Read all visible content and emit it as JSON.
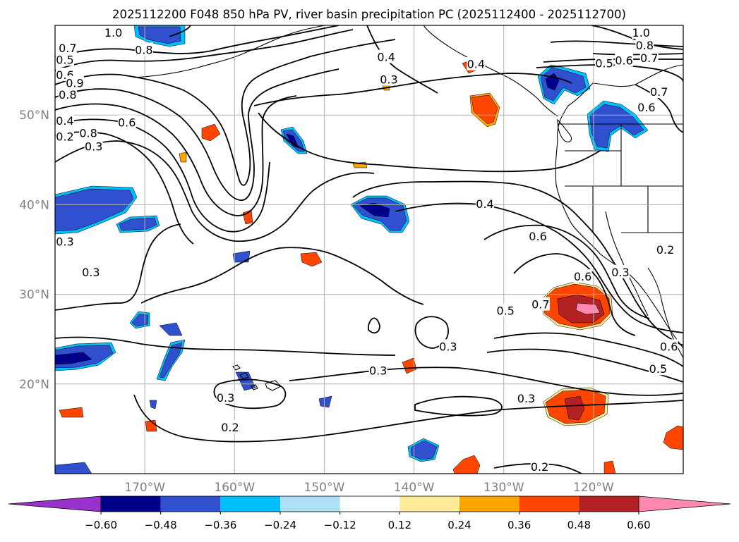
{
  "title": "2025112200 F048 850 hPa PV, river basin precipitation PC (2025112400 - 2025112700)",
  "colors": {
    "contour": "#000000",
    "grid": "#b0b0b0",
    "tick_label": "#808080",
    "bins": [
      "#9932cc",
      "#00008b",
      "#3050d0",
      "#00bfff",
      "#b0e0f8",
      "#ffffff",
      "#ffeb99",
      "#ffa500",
      "#ff4500",
      "#b22222",
      "#ff88b0"
    ]
  },
  "map": {
    "lon_range": [
      -180,
      -110
    ],
    "lat_range": [
      10,
      60
    ],
    "lon_ticks": [
      -170,
      -160,
      -150,
      -140,
      -130,
      -120
    ],
    "lat_ticks": [
      20,
      30,
      40,
      50
    ],
    "lon_tick_labels": [
      "170°W",
      "160°W",
      "150°W",
      "140°W",
      "130°W",
      "120°W"
    ],
    "lat_tick_labels": [
      "20°N",
      "30°N",
      "40°N",
      "50°N"
    ]
  },
  "colorbar": {
    "ticks": [
      -0.6,
      -0.48,
      -0.36,
      -0.24,
      -0.12,
      0.12,
      0.24,
      0.36,
      0.48,
      0.6
    ],
    "tick_labels": [
      "−0.60",
      "−0.48",
      "−0.36",
      "−0.24",
      "−0.12",
      "0.12",
      "0.24",
      "0.36",
      "0.48",
      "0.60"
    ],
    "extend": "both"
  },
  "contour_labels": [
    {
      "text": "1.0",
      "lon": -173.5,
      "lat": 59.5
    },
    {
      "text": "0.7",
      "lon": -178.6,
      "lat": 57.5
    },
    {
      "text": "0.8",
      "lon": -170.1,
      "lat": 57.3
    },
    {
      "text": "0.5",
      "lon": -183.6,
      "lat": 56.2
    },
    {
      "text": "0.6",
      "lon": -182.0,
      "lat": 54.5
    },
    {
      "text": "0.9",
      "lon": -177.8,
      "lat": 53.6
    },
    {
      "text": "0.8",
      "lon": -178.6,
      "lat": 52.3
    },
    {
      "text": "0.4",
      "lon": -181.5,
      "lat": 49.4
    },
    {
      "text": "0.2",
      "lon": -184.1,
      "lat": 47.6
    },
    {
      "text": "0.8",
      "lon": -176.3,
      "lat": 48.0
    },
    {
      "text": "0.6",
      "lon": -172.0,
      "lat": 49.2
    },
    {
      "text": "0.3",
      "lon": -175.7,
      "lat": 46.5
    },
    {
      "text": "0.4",
      "lon": -143.1,
      "lat": 56.5
    },
    {
      "text": "0.3",
      "lon": -142.8,
      "lat": 54.0
    },
    {
      "text": "0.4",
      "lon": -133.1,
      "lat": 55.7
    },
    {
      "text": "1.0",
      "lon": -114.7,
      "lat": 59.5
    },
    {
      "text": "0.8",
      "lon": -114.3,
      "lat": 57.8
    },
    {
      "text": "0.5",
      "lon": -118.8,
      "lat": 55.8
    },
    {
      "text": "0.6",
      "lon": -116.6,
      "lat": 56.1
    },
    {
      "text": "0.7",
      "lon": -113.8,
      "lat": 56.4
    },
    {
      "text": "0.7",
      "lon": -112.7,
      "lat": 52.6
    },
    {
      "text": "0.6",
      "lon": -114.1,
      "lat": 50.9
    },
    {
      "text": "0.4",
      "lon": -132.1,
      "lat": 40.1
    },
    {
      "text": "0.6",
      "lon": -126.2,
      "lat": 36.5
    },
    {
      "text": "0.3",
      "lon": -182.9,
      "lat": 35.9
    },
    {
      "text": "0.3",
      "lon": -176.0,
      "lat": 32.5
    },
    {
      "text": "0.3",
      "lon": -117.0,
      "lat": 32.5
    },
    {
      "text": "0.2",
      "lon": -112.0,
      "lat": 35.0
    },
    {
      "text": "0.6",
      "lon": -121.2,
      "lat": 32.0
    },
    {
      "text": "0.7",
      "lon": -125.9,
      "lat": 28.9
    },
    {
      "text": "0.5",
      "lon": -129.8,
      "lat": 28.2
    },
    {
      "text": "0.3",
      "lon": -136.2,
      "lat": 24.2
    },
    {
      "text": "0.6",
      "lon": -111.6,
      "lat": 24.2
    },
    {
      "text": "0.5",
      "lon": -112.8,
      "lat": 21.7
    },
    {
      "text": "0.3",
      "lon": -144.0,
      "lat": 21.5
    },
    {
      "text": "0.3",
      "lon": -161.0,
      "lat": 18.5
    },
    {
      "text": "0.3",
      "lon": -127.5,
      "lat": 18.4
    },
    {
      "text": "0.2",
      "lon": -160.5,
      "lat": 15.2
    },
    {
      "text": "0.2",
      "lon": -126.0,
      "lat": 10.8
    }
  ]
}
